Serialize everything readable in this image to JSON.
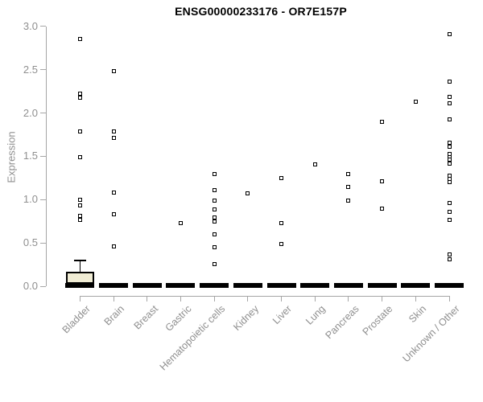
{
  "page": {
    "title": "ENSG00000233176 - OR7E157P"
  },
  "chart_data": {
    "type": "boxplot",
    "subtype": "boxplot-with-outlier-points",
    "title": "ENSG00000233176 - OR7E157P",
    "xlabel": "",
    "ylabel": "Expression",
    "ylim": [
      0.0,
      3.0
    ],
    "yticks": [
      "0.0",
      "0.5",
      "1.0",
      "1.5",
      "2.0",
      "2.5",
      "3.0"
    ],
    "grid": false,
    "legend": false,
    "marker": "open-black-square",
    "colors": {
      "box_fill": "#f0ecd4",
      "box_border": "#000000",
      "point": "#000000",
      "axis": "#a6a6a6",
      "tick_label": "#8f8f8f",
      "title": "#000000",
      "background": "#ffffff"
    },
    "categories": [
      "Bladder",
      "Brain",
      "Breast",
      "Gastric",
      "Hematopoietic cells",
      "Kidney",
      "Liver",
      "Lung",
      "Pancreas",
      "Prostate",
      "Skin",
      "Unknown / Other"
    ],
    "series": [
      {
        "category": "Bladder",
        "box": {
          "q1": 0.0,
          "median": 0.0,
          "q3": 0.17,
          "whisker_low": 0.0,
          "whisker_high": 0.3
        },
        "points": [
          2.86,
          2.22,
          2.18,
          1.79,
          1.49,
          1.0,
          0.93,
          0.81,
          0.77
        ]
      },
      {
        "category": "Brain",
        "box": {
          "q1": 0.0,
          "median": 0.0,
          "q3": 0.0,
          "whisker_low": 0.0,
          "whisker_high": 0.0
        },
        "points": [
          2.48,
          1.79,
          1.71,
          1.08,
          0.83,
          0.46
        ]
      },
      {
        "category": "Breast",
        "box": {
          "q1": 0.0,
          "median": 0.0,
          "q3": 0.0,
          "whisker_low": 0.0,
          "whisker_high": 0.0
        },
        "points": []
      },
      {
        "category": "Gastric",
        "box": {
          "q1": 0.0,
          "median": 0.0,
          "q3": 0.0,
          "whisker_low": 0.0,
          "whisker_high": 0.0
        },
        "points": [
          0.73
        ]
      },
      {
        "category": "Hematopoietic cells",
        "box": {
          "q1": 0.0,
          "median": 0.0,
          "q3": 0.0,
          "whisker_low": 0.0,
          "whisker_high": 0.0
        },
        "points": [
          1.3,
          1.11,
          0.99,
          0.89,
          0.79,
          0.75,
          0.6,
          0.45,
          0.26
        ]
      },
      {
        "category": "Kidney",
        "box": {
          "q1": 0.0,
          "median": 0.0,
          "q3": 0.0,
          "whisker_low": 0.0,
          "whisker_high": 0.0
        },
        "points": [
          1.07
        ]
      },
      {
        "category": "Liver",
        "box": {
          "q1": 0.0,
          "median": 0.0,
          "q3": 0.0,
          "whisker_low": 0.0,
          "whisker_high": 0.0
        },
        "points": [
          1.25,
          0.73,
          0.49
        ]
      },
      {
        "category": "Lung",
        "box": {
          "q1": 0.0,
          "median": 0.0,
          "q3": 0.0,
          "whisker_low": 0.0,
          "whisker_high": 0.0
        },
        "points": [
          1.41
        ]
      },
      {
        "category": "Pancreas",
        "box": {
          "q1": 0.0,
          "median": 0.0,
          "q3": 0.0,
          "whisker_low": 0.0,
          "whisker_high": 0.0
        },
        "points": [
          1.3,
          1.15,
          0.99
        ]
      },
      {
        "category": "Prostate",
        "box": {
          "q1": 0.0,
          "median": 0.0,
          "q3": 0.0,
          "whisker_low": 0.0,
          "whisker_high": 0.0
        },
        "points": [
          1.9,
          1.21,
          0.9
        ]
      },
      {
        "category": "Skin",
        "box": {
          "q1": 0.0,
          "median": 0.0,
          "q3": 0.0,
          "whisker_low": 0.0,
          "whisker_high": 0.0
        },
        "points": [
          2.13
        ]
      },
      {
        "category": "Unknown / Other",
        "box": {
          "q1": 0.0,
          "median": 0.0,
          "q3": 0.0,
          "whisker_low": 0.0,
          "whisker_high": 0.0
        },
        "points": [
          2.91,
          2.36,
          2.19,
          2.11,
          1.93,
          1.66,
          1.61,
          1.53,
          1.49,
          1.46,
          1.42,
          1.28,
          1.24,
          1.2,
          0.96,
          0.86,
          0.77,
          0.37,
          0.31
        ]
      }
    ]
  }
}
